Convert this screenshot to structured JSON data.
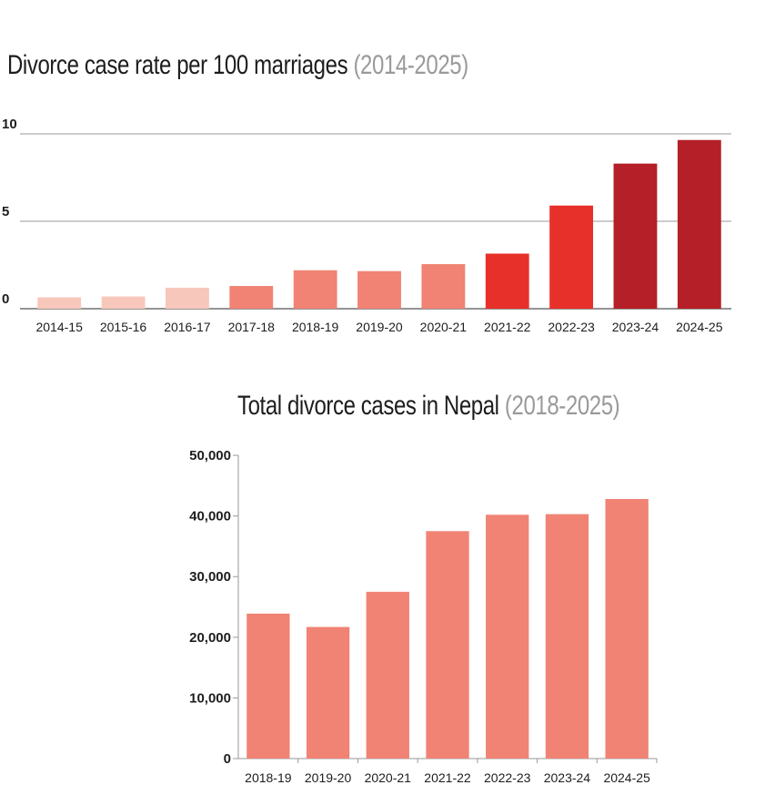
{
  "chart_data": [
    {
      "type": "bar",
      "title": "Divorce case rate per 100 marriages",
      "subtitle": "(2014-2025)",
      "xlabel": "",
      "ylabel": "",
      "ylim": [
        0,
        10
      ],
      "yticks": [
        "0",
        "5",
        "10"
      ],
      "grid": true,
      "categories": [
        "2014-15",
        "2015-16",
        "2016-17",
        "2017-18",
        "2018-19",
        "2019-20",
        "2020-21",
        "2021-22",
        "2022-23",
        "2023-24",
        "2024-25"
      ],
      "values": [
        0.65,
        0.7,
        1.2,
        1.3,
        2.2,
        2.15,
        2.55,
        3.15,
        5.9,
        8.3,
        9.65
      ],
      "colors": [
        "#f8c7bb",
        "#f8c7bb",
        "#f8c7bb",
        "#f08374",
        "#f08374",
        "#f08374",
        "#f08374",
        "#e8302a",
        "#e8302a",
        "#b51f27",
        "#b51f27"
      ]
    },
    {
      "type": "bar",
      "title": "Total divorce cases in Nepal",
      "subtitle": "(2018-2025)",
      "xlabel": "",
      "ylabel": "",
      "ylim": [
        0,
        50000
      ],
      "yticks": [
        "0",
        "10,000",
        "20,000",
        "30,000",
        "40,000",
        "50,000"
      ],
      "grid": false,
      "categories": [
        "2018-19",
        "2019-20",
        "2020-21",
        "2021-22",
        "2022-23",
        "2023-24",
        "2024-25"
      ],
      "values": [
        23900,
        21700,
        27500,
        37500,
        40200,
        40300,
        42800
      ],
      "colors": [
        "#f08374"
      ]
    }
  ]
}
